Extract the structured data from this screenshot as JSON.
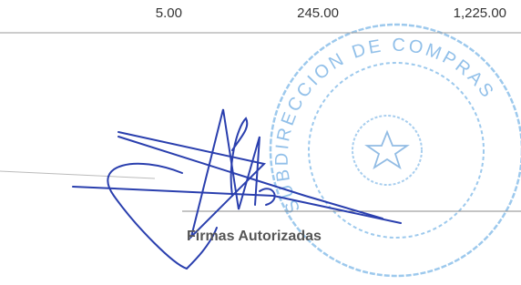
{
  "row": {
    "quantity": "5.00",
    "unit_price": "245.00",
    "total": "1,225.00"
  },
  "stamp": {
    "text": "SUBDIRECCION DE COMPRAS"
  },
  "signature_label": "Firmas Autorizadas"
}
